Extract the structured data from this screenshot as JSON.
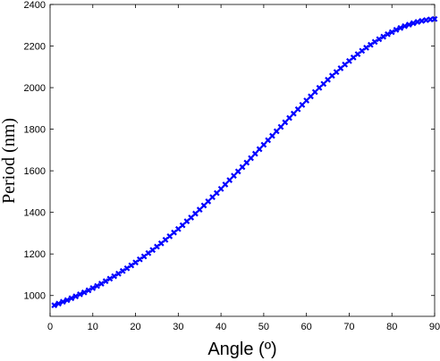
{
  "chart_data": {
    "type": "scatter",
    "title": "",
    "xlabel": "Angle (º)",
    "ylabel": "Period (nm)",
    "xlim": [
      0,
      90
    ],
    "ylim": [
      900,
      2400
    ],
    "xticks": [
      0,
      10,
      20,
      30,
      40,
      50,
      60,
      70,
      80,
      90
    ],
    "yticks": [
      1000,
      1200,
      1400,
      1600,
      1800,
      2000,
      2200,
      2400
    ],
    "grid": false,
    "marker": "x",
    "marker_color": "#0000ff",
    "series": [
      {
        "x": [
          1,
          2,
          3,
          4,
          5,
          6,
          7,
          8,
          9,
          10,
          11,
          12,
          13,
          14,
          15,
          16,
          17,
          18,
          19,
          20,
          21,
          22,
          23,
          24,
          25,
          26,
          27,
          28,
          29,
          30,
          31,
          32,
          33,
          34,
          35,
          36,
          37,
          38,
          39,
          40,
          41,
          42,
          43,
          44,
          45,
          46,
          47,
          48,
          49,
          50,
          51,
          52,
          53,
          54,
          55,
          56,
          57,
          58,
          59,
          60,
          61,
          62,
          63,
          64,
          65,
          66,
          67,
          68,
          69,
          70,
          71,
          72,
          73,
          74,
          75,
          76,
          77,
          78,
          79,
          80,
          81,
          82,
          83,
          84,
          85,
          86,
          87,
          88,
          89,
          90
        ],
        "y": [
          953,
          961,
          970,
          978,
          987,
          996,
          1006,
          1015,
          1025,
          1036,
          1046,
          1057,
          1069,
          1081,
          1093,
          1105,
          1118,
          1131,
          1145,
          1159,
          1174,
          1188,
          1204,
          1219,
          1235,
          1251,
          1268,
          1285,
          1303,
          1320,
          1338,
          1357,
          1375,
          1394,
          1413,
          1433,
          1453,
          1473,
          1493,
          1513,
          1534,
          1555,
          1576,
          1597,
          1618,
          1639,
          1661,
          1682,
          1704,
          1725,
          1747,
          1768,
          1790,
          1811,
          1833,
          1854,
          1875,
          1896,
          1917,
          1938,
          1958,
          1979,
          1999,
          2018,
          2038,
          2057,
          2075,
          2093,
          2111,
          2128,
          2145,
          2161,
          2177,
          2192,
          2206,
          2220,
          2233,
          2245,
          2257,
          2267,
          2278,
          2287,
          2296,
          2303,
          2310,
          2316,
          2321,
          2325,
          2328,
          2330
        ]
      }
    ]
  }
}
